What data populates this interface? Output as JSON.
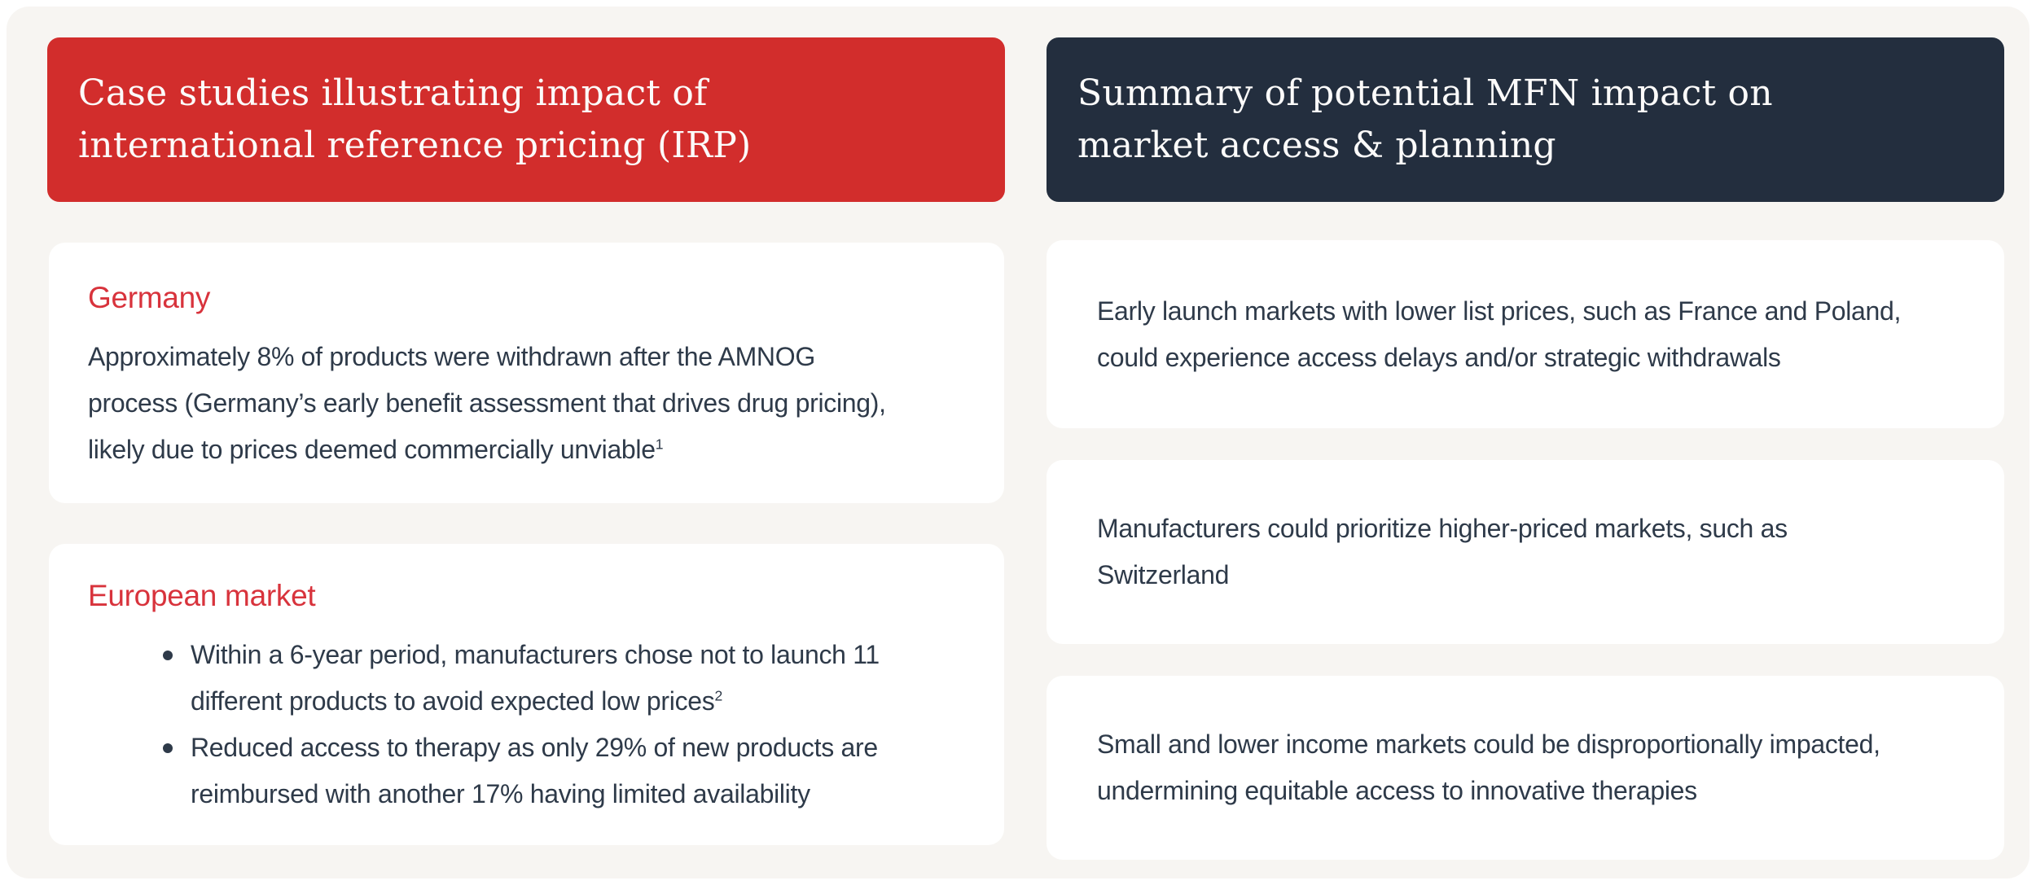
{
  "colors": {
    "page_background": "#ffffff",
    "canvas_background": "#f7f5f2",
    "card_background": "#ffffff",
    "header_red": "#d22d2c",
    "header_navy": "#232e3e",
    "header_text": "#fcfbfa",
    "card_heading_red": "#d8333c",
    "body_text": "#2e3a49"
  },
  "left_panel": {
    "header": {
      "lines": [
        "Case studies illustrating impact of",
        "international reference pricing (IRP)"
      ]
    },
    "germany_card": {
      "heading": "Germany",
      "body_lines": [
        "Approximately 8% of products were withdrawn after the AMNOG",
        "process (Germany’s early benefit assessment that drives drug pricing),",
        "likely due to prices deemed commercially unviable"
      ],
      "footnote_sup": "1"
    },
    "european_card": {
      "heading": "European market",
      "bullets": [
        {
          "lines": [
            "Within a 6-year period, manufacturers chose not to launch 11",
            "different products to avoid expected low prices"
          ],
          "footnote_sup": "2"
        },
        {
          "lines": [
            "Reduced access to therapy as only 29% of new products are",
            "reimbursed with another 17% having limited availability"
          ],
          "footnote_sup": ""
        }
      ]
    }
  },
  "right_panel": {
    "header": {
      "lines": [
        "Summary of potential MFN impact on",
        "market access & planning"
      ]
    },
    "cards": [
      {
        "lines": [
          "Early launch markets with lower list prices, such as France and Poland,",
          "could experience access delays and/or strategic withdrawals"
        ]
      },
      {
        "lines": [
          "Manufacturers could prioritize higher-priced markets, such as",
          "Switzerland"
        ]
      },
      {
        "lines": [
          "Small and lower income markets could be disproportionally impacted,",
          "undermining equitable access to innovative therapies"
        ]
      }
    ]
  }
}
